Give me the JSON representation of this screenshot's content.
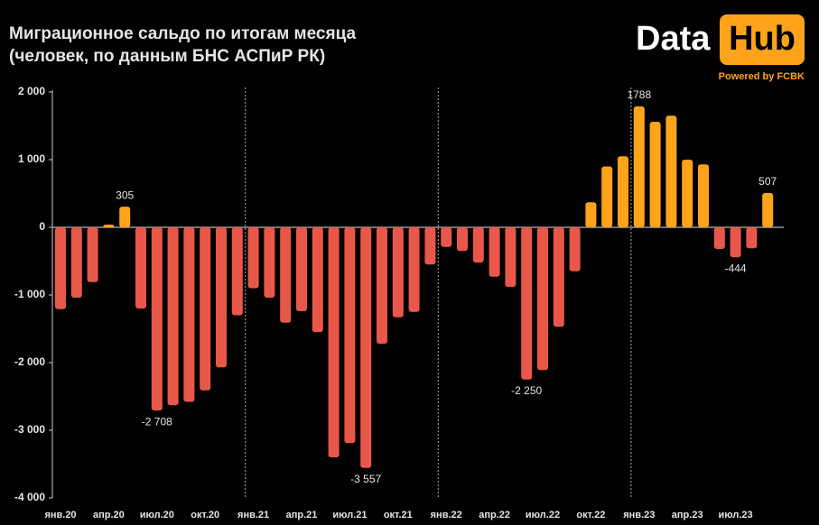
{
  "chart_data": {
    "type": "bar",
    "title": "Миграционное сальдо по итогам месяца",
    "subtitle": "(человек, по данным БНС АСПиР РК)",
    "categories": [
      "янв.20",
      null,
      null,
      "апр.20",
      null,
      null,
      "июл.20",
      null,
      null,
      "окт.20",
      null,
      null,
      "янв.21",
      null,
      null,
      "апр.21",
      null,
      null,
      "июл.21",
      null,
      null,
      "окт.21",
      null,
      null,
      "янв.22",
      null,
      null,
      "апр.22",
      null,
      null,
      "июл.22",
      null,
      null,
      "окт.22",
      null,
      null,
      "янв.23",
      null,
      null,
      "апр.23",
      null,
      null,
      "июл.23",
      null,
      null
    ],
    "values": [
      -1210,
      -1040,
      -810,
      40,
      305,
      -1200,
      -2708,
      -2630,
      -2580,
      -2410,
      -2070,
      -1300,
      -900,
      -1040,
      -1410,
      -1240,
      -1550,
      -3400,
      -3190,
      -3557,
      -1720,
      -1330,
      -1250,
      -550,
      -290,
      -350,
      -520,
      -730,
      -880,
      -2250,
      -2110,
      -1470,
      -650,
      370,
      900,
      1050,
      1788,
      1560,
      1650,
      1000,
      930,
      -320,
      -444,
      -310,
      507
    ],
    "value_labels": [
      null,
      null,
      null,
      null,
      "305",
      null,
      "-2 708",
      null,
      null,
      null,
      null,
      null,
      null,
      null,
      null,
      null,
      null,
      null,
      null,
      "-3 557",
      null,
      null,
      null,
      null,
      null,
      null,
      null,
      null,
      null,
      "-2 250",
      null,
      null,
      null,
      null,
      null,
      null,
      "1788",
      null,
      null,
      null,
      null,
      null,
      "-444",
      null,
      "507"
    ],
    "colors": {
      "positive": "#ffa31a",
      "negative": "#e8584a"
    },
    "ylim": [
      -4000,
      2000
    ],
    "yticks": [
      {
        "value": -4000,
        "label": "-4 000"
      },
      {
        "value": -3000,
        "label": "-3 000"
      },
      {
        "value": -2000,
        "label": "-2 000"
      },
      {
        "value": -1000,
        "label": "-1 000"
      },
      0,
      {
        "value": 1000,
        "label": "1 000"
      },
      {
        "value": 2000,
        "label": "2 000"
      }
    ]
  },
  "logo": {
    "word1": "Data",
    "word2": "Hub",
    "tagline": "Powered by FCBK"
  }
}
